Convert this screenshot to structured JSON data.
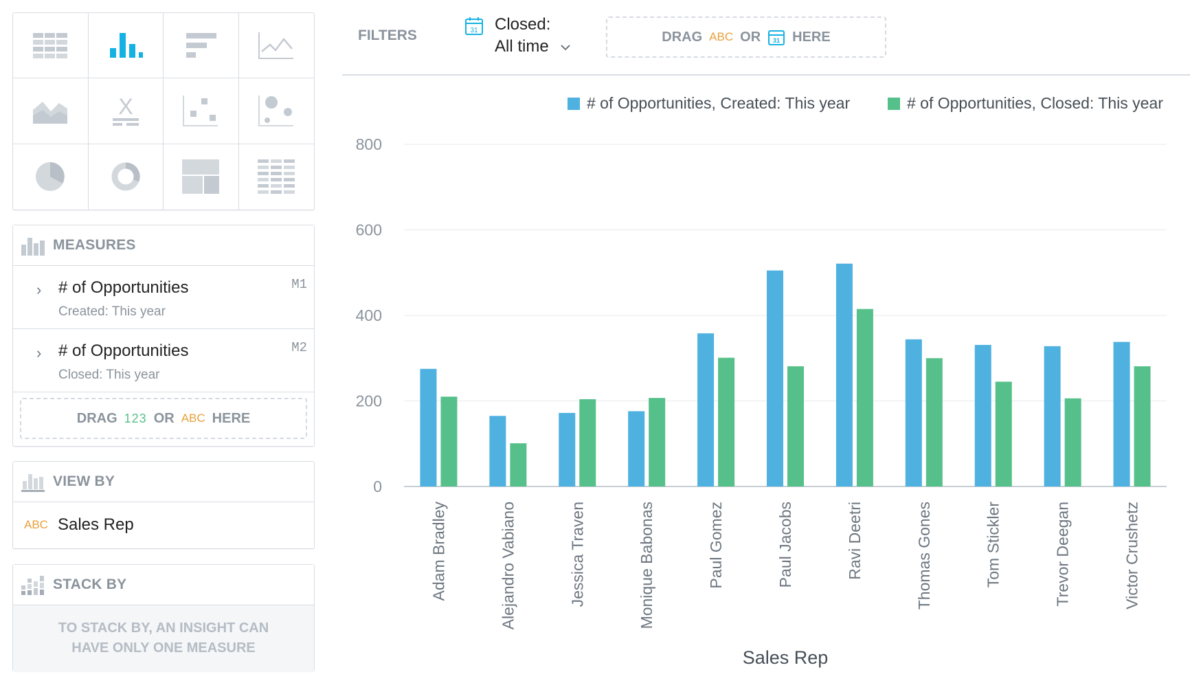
{
  "viz_types": [
    {
      "name": "table-icon"
    },
    {
      "name": "column-chart-icon",
      "active": true
    },
    {
      "name": "bar-chart-icon"
    },
    {
      "name": "line-chart-icon"
    },
    {
      "name": "area-chart-icon"
    },
    {
      "name": "headline-icon"
    },
    {
      "name": "scatter-plot-icon"
    },
    {
      "name": "bubble-chart-icon"
    },
    {
      "name": "pie-chart-icon"
    },
    {
      "name": "donut-chart-icon"
    },
    {
      "name": "treemap-icon"
    },
    {
      "name": "heatmap-icon"
    }
  ],
  "headline_glyph": "X",
  "measures_section": {
    "title": "MEASURES",
    "items": [
      {
        "title": "# of Opportunities",
        "subtitle": "Created: This year",
        "id": "M1"
      },
      {
        "title": "# of Opportunities",
        "subtitle": "Closed: This year",
        "id": "M2"
      }
    ],
    "dropzone": {
      "drag": "DRAG",
      "num": "123",
      "or": "OR",
      "abc": "ABC",
      "here": "HERE"
    }
  },
  "view_by_section": {
    "title": "VIEW BY",
    "attribute": {
      "type": "ABC",
      "name": "Sales Rep"
    }
  },
  "stack_by_section": {
    "title": "STACK BY",
    "message_line1": "TO STACK BY, AN INSIGHT CAN",
    "message_line2": "HAVE ONLY ONE MEASURE"
  },
  "filters": {
    "label": "FILTERS",
    "closed_label": "Closed:",
    "closed_value": "All time",
    "calendar_day": "31",
    "dropzone": {
      "drag": "DRAG",
      "abc": "ABC",
      "or": "OR",
      "here": "HERE"
    }
  },
  "colors": {
    "series1": "#4eb1e0",
    "series2": "#56c08a",
    "accent": "#14b2e2",
    "abc": "#e8a03a",
    "num": "#56c08a"
  },
  "chart_data": {
    "type": "bar",
    "categories": [
      "Adam Bradley",
      "Alejandro Vabiano",
      "Jessica Traven",
      "Monique Babonas",
      "Paul Gomez",
      "Paul Jacobs",
      "Ravi Deetri",
      "Thomas Gones",
      "Tom Stickler",
      "Trevor Deegan",
      "Victor Crushetz"
    ],
    "series": [
      {
        "name": "# of Opportunities, Created: This year",
        "values": [
          275,
          165,
          172,
          176,
          358,
          505,
          521,
          344,
          331,
          328,
          338
        ]
      },
      {
        "name": "# of Opportunities, Closed: This year",
        "values": [
          210,
          101,
          204,
          207,
          301,
          281,
          415,
          300,
          245,
          206,
          281
        ]
      }
    ],
    "xlabel": "Sales Rep",
    "ylabel": "",
    "ylim": [
      0,
      800
    ],
    "yticks": [
      0,
      200,
      400,
      600,
      800
    ],
    "grid": true,
    "legend_position": "top-right"
  }
}
